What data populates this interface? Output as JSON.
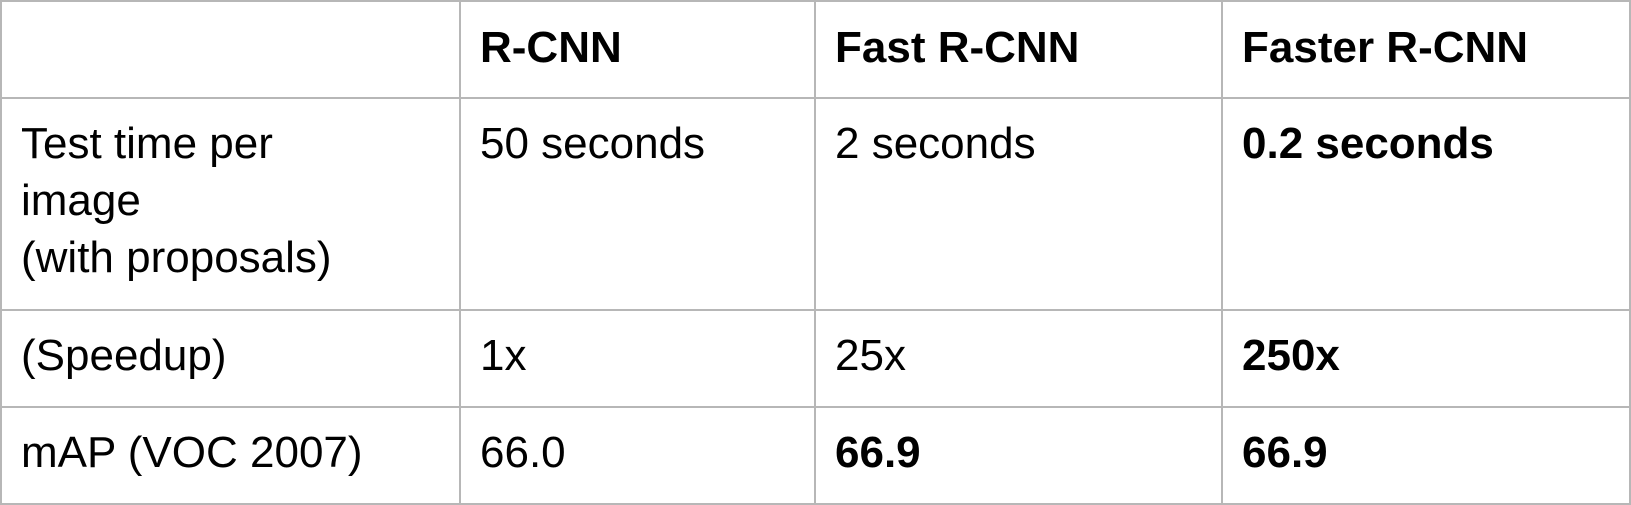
{
  "table": {
    "header": [
      "",
      "R-CNN",
      "Fast R-CNN",
      "Faster R-CNN"
    ],
    "rows": [
      {
        "label": "Test time per\nimage\n(with proposals)",
        "values": [
          "50 seconds",
          "2 seconds",
          "0.2 seconds"
        ]
      },
      {
        "label": "(Speedup)",
        "values": [
          "1x",
          "25x",
          "250x"
        ]
      },
      {
        "label": "mAP (VOC 2007)",
        "values": [
          "66.0",
          "66.9",
          "66.9"
        ]
      }
    ]
  }
}
